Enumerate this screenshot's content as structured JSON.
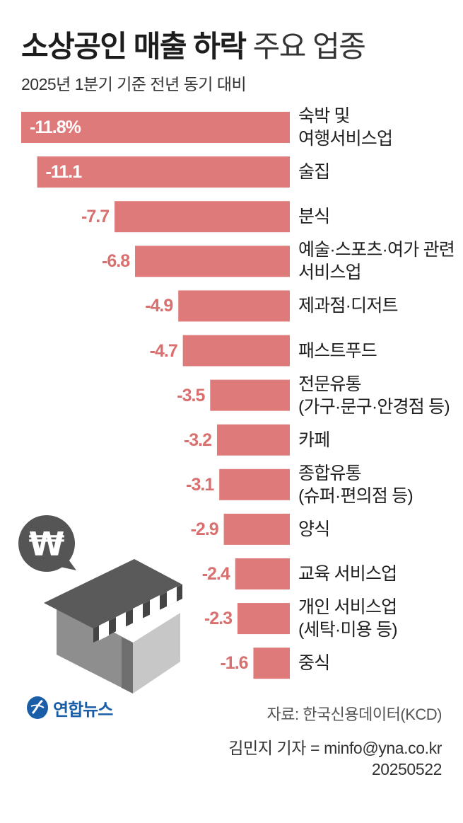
{
  "title": {
    "strong": "소상공인 매출 하락",
    "light": "주요 업종"
  },
  "subtitle": "2025년 1분기 기준 전년 동기 대비",
  "colors": {
    "bar": "#de7b7a",
    "value_text": "#d9706f",
    "value_text_inside": "#ffffff"
  },
  "chart_data": {
    "type": "bar",
    "orientation": "horizontal",
    "title": "소상공인 매출 하락 주요 업종",
    "subtitle": "2025년 1분기 기준 전년 동기 대비",
    "unit": "%",
    "categories": [
      [
        "숙박 및",
        "여행서비스업"
      ],
      [
        "술집"
      ],
      [
        "분식"
      ],
      [
        "예술·스포츠·여가 관련",
        "서비스업"
      ],
      [
        "제과점·디저트"
      ],
      [
        "패스트푸드"
      ],
      [
        "전문유통",
        "(가구·문구·안경점 등)"
      ],
      [
        "카페"
      ],
      [
        "종합유통",
        "(슈퍼·편의점 등)"
      ],
      [
        "양식"
      ],
      [
        "교육 서비스업"
      ],
      [
        "개인 서비스업",
        "(세탁·미용 등)"
      ],
      [
        "중식"
      ]
    ],
    "values": [
      -11.8,
      -11.1,
      -7.7,
      -6.8,
      -4.9,
      -4.7,
      -3.5,
      -3.2,
      -3.1,
      -2.9,
      -2.4,
      -2.3,
      -1.6
    ],
    "value_labels": [
      "-11.8%",
      "-11.1",
      "-7.7",
      "-6.8",
      "-4.9",
      "-4.7",
      "-3.5",
      "-3.2",
      "-3.1",
      "-2.9",
      "-2.4",
      "-2.3",
      "-1.6"
    ],
    "xlim": [
      -11.8,
      0
    ]
  },
  "illustration": {
    "symbol": "₩",
    "icon": "store-icon"
  },
  "logo": {
    "text": "연합뉴스",
    "icon": "yonhap-logo-icon"
  },
  "source": "자료: 한국신용데이터(KCD)",
  "credit": {
    "reporter": "김민지 기자 = minfo@yna.co.kr",
    "date": "20250522"
  }
}
